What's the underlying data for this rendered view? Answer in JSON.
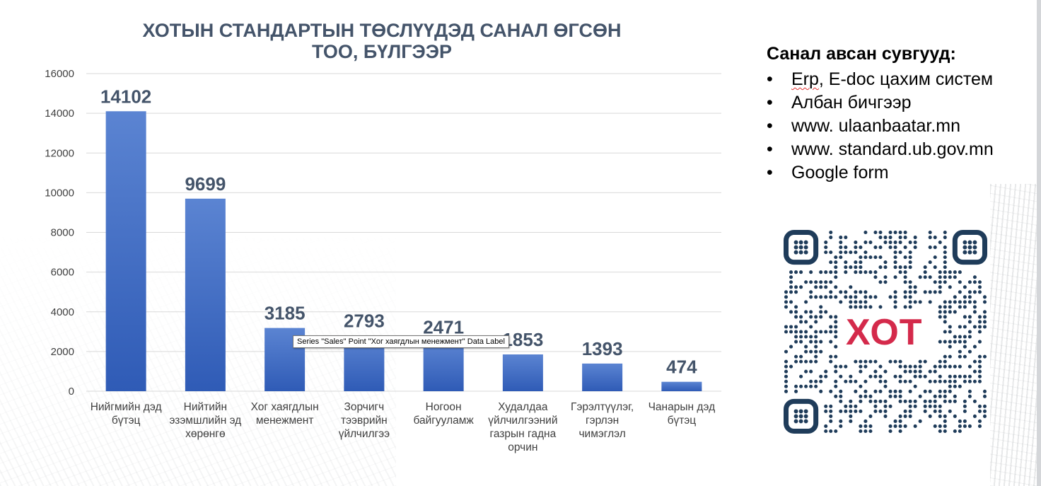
{
  "chart_data": {
    "type": "bar",
    "title_lines": [
      "ХОТЫН СТАНДАРТЫН ТӨСЛҮҮДЭД САНАЛ ӨГСӨН",
      "ТОО, БҮЛГЭЭР"
    ],
    "categories": [
      [
        "Нийгмийн дэд",
        "бүтэц"
      ],
      [
        "Нийтийн",
        "эзэмшлийн эд",
        "хөрөнгө"
      ],
      [
        "Хог хаягдлын",
        "менежмент"
      ],
      [
        "Зорчигч",
        "тээврийн",
        "үйлчилгээ"
      ],
      [
        "Ногоон",
        "байгууламж"
      ],
      [
        "Худалдаа",
        "үйлчилгээний",
        "газрын гадна",
        "орчин"
      ],
      [
        "Гэрэлтүүлэг,",
        "гэрлэн",
        "чимэглэл"
      ],
      [
        "Чанарын дэд",
        "бүтэц"
      ]
    ],
    "series": [
      {
        "values": [
          14102,
          9699,
          3185,
          2793,
          2471,
          1853,
          1393,
          474
        ],
        "data_labels": [
          "14102",
          "9699",
          "3185",
          "2793",
          "2471",
          "1853",
          "1393",
          "474"
        ]
      }
    ],
    "y_ticks": [
      "0",
      "2000",
      "4000",
      "6000",
      "8000",
      "10000",
      "12000",
      "14000",
      "16000"
    ],
    "ylim": [
      0,
      16000
    ],
    "grid": true,
    "bar_color_top": "#5b84d2",
    "bar_color_bottom": "#2f5bb6",
    "label_color": "#44546a"
  },
  "tooltip": {
    "text": "Series \"Sales\" Point \"Хог хаягдлын менежмент\" Data Label"
  },
  "channels": {
    "heading": "Санал авсан сувгууд:",
    "items": [
      {
        "bullet": "•",
        "text_first": "Erp",
        "text_rest": ", E-doc цахим систем"
      },
      {
        "bullet": "•",
        "text": "Албан бичгээр"
      },
      {
        "bullet": "•",
        "text": "www. ulaanbaatar.mn"
      },
      {
        "bullet": "•",
        "text": "www. standard.ub.gov.mn"
      },
      {
        "bullet": "•",
        "text": "Google form"
      }
    ]
  },
  "qr": {
    "logo_text": "ХОТ",
    "icon": "qr-code-icon",
    "color": "#1f3c5a",
    "logo_color": "#d42a4b"
  }
}
